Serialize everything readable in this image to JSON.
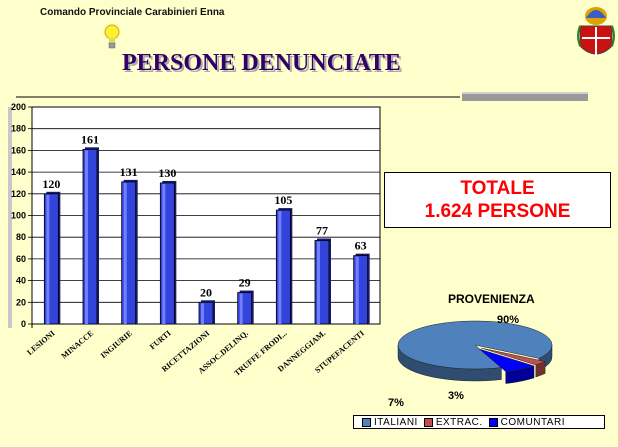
{
  "header": {
    "org": "Comando Provinciale Carabinieri Enna"
  },
  "title": "PERSONE DENUNCIATE",
  "totale": {
    "line1": "TOTALE",
    "line2": "1.624 PERSONE"
  },
  "icons": [
    "lightbulb-icon",
    "carabinieri-crest-icon"
  ],
  "colors": {
    "bar": "#3344dd",
    "title": "#330066",
    "totale": "#ff0000",
    "background": "#ffffcc"
  },
  "chart_data": [
    {
      "type": "bar",
      "categories": [
        "LESIONI",
        "MINACCE",
        "INGIURIE",
        "FURTI",
        "RICETTAZIONI",
        "ASSOC.DELINQ.",
        "TRUFFE FRODI...",
        "DANNEGGIAM.",
        "STUPEFACENTI"
      ],
      "values": [
        120,
        161,
        131,
        130,
        20,
        29,
        105,
        77,
        63
      ],
      "ylim": [
        0,
        200
      ],
      "yticks": [
        0,
        20,
        40,
        60,
        80,
        100,
        120,
        140,
        160,
        180,
        200
      ],
      "grid": true,
      "data_labels": true
    },
    {
      "type": "pie",
      "title": "PROVENIENZA",
      "labels": [
        "ITALIANI",
        "EXTRAC.",
        "COMUNTARI"
      ],
      "values": [
        90,
        3,
        7
      ],
      "value_labels": [
        "90%",
        "3%",
        "7%"
      ],
      "colors": [
        "#4f81bd",
        "#c0504d",
        "#0000ff"
      ],
      "legend": "bottom"
    }
  ]
}
